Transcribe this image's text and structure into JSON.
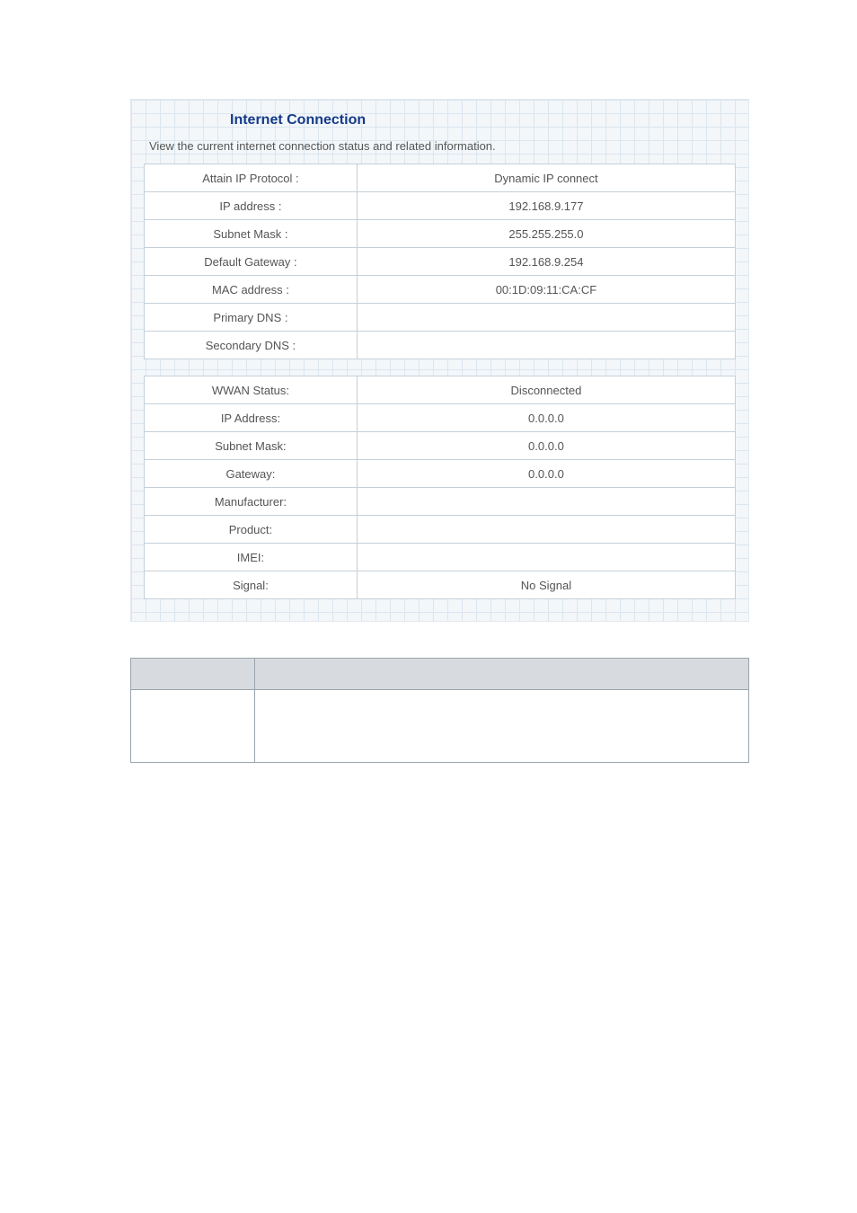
{
  "panel": {
    "title": "Internet Connection",
    "description": "View the current internet connection status and related information."
  },
  "wan": {
    "rows": [
      {
        "label": "Attain IP Protocol :",
        "value": "Dynamic IP connect"
      },
      {
        "label": "IP address :",
        "value": "192.168.9.177"
      },
      {
        "label": "Subnet Mask :",
        "value": "255.255.255.0"
      },
      {
        "label": "Default Gateway :",
        "value": "192.168.9.254"
      },
      {
        "label": "MAC address :",
        "value": "00:1D:09:11:CA:CF"
      },
      {
        "label": "Primary DNS :",
        "value": ""
      },
      {
        "label": "Secondary DNS :",
        "value": ""
      }
    ]
  },
  "wwan": {
    "rows": [
      {
        "label": "WWAN Status:",
        "value": "Disconnected"
      },
      {
        "label": "IP Address:",
        "value": "0.0.0.0"
      },
      {
        "label": "Subnet Mask:",
        "value": "0.0.0.0"
      },
      {
        "label": "Gateway:",
        "value": "0.0.0.0"
      },
      {
        "label": "Manufacturer:",
        "value": ""
      },
      {
        "label": "Product:",
        "value": ""
      },
      {
        "label": "IMEI:",
        "value": ""
      },
      {
        "label": "Signal:",
        "value": "No Signal"
      }
    ]
  },
  "style": {
    "title_color": "#153a8a",
    "grid_color": "#dbe6ef",
    "panel_bg": "#f3f7fa",
    "cell_border": "#c5d0d9",
    "text_color": "#555555",
    "bottom_header_bg": "#d7dbdf",
    "bottom_border": "#9aa4ad"
  }
}
